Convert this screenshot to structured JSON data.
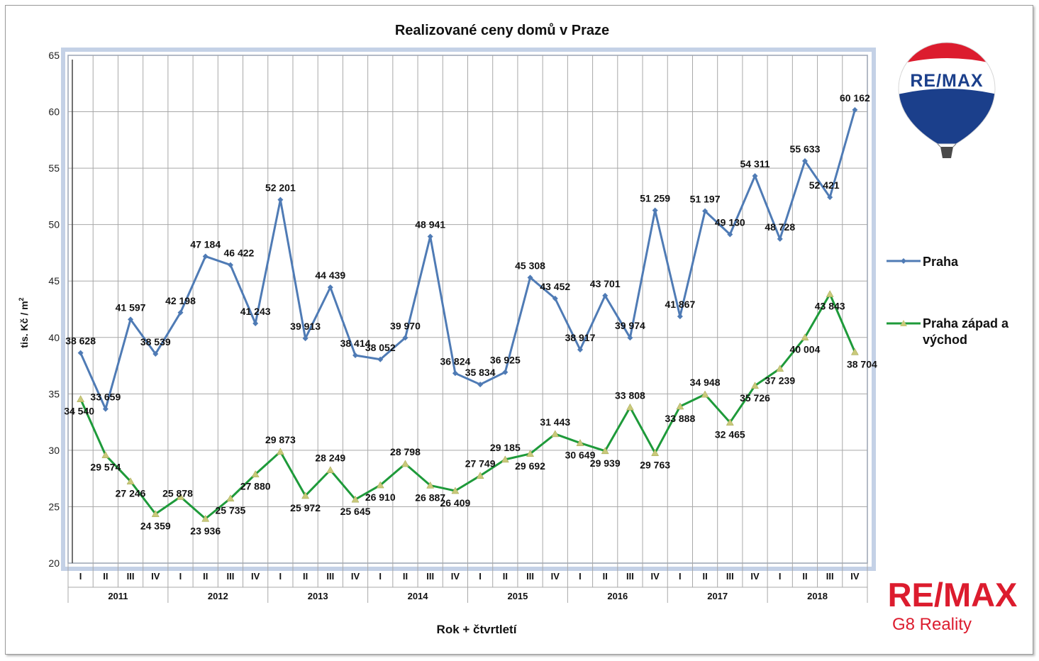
{
  "chart_data": {
    "type": "line",
    "title": "Realizované ceny domů v Praze",
    "xlabel": "Rok + čtvrtletí",
    "ylabel": "tis. Kč / m²",
    "ylim": [
      20,
      65
    ],
    "yticks": [
      "20",
      "25",
      "30",
      "35",
      "40",
      "45",
      "50",
      "55",
      "60",
      "65"
    ],
    "grid": true,
    "legend_position": "right",
    "quarters": [
      "I",
      "II",
      "III",
      "IV"
    ],
    "years": [
      "2011",
      "2012",
      "2013",
      "2014",
      "2015",
      "2016",
      "2017",
      "2018"
    ],
    "series": [
      {
        "name": "Praha",
        "color": "#4f7bb5",
        "marker": "diamond",
        "values": [
          38628,
          33659,
          41597,
          38539,
          42198,
          47184,
          46422,
          41243,
          52201,
          39913,
          44439,
          38414,
          38052,
          39970,
          48941,
          36824,
          35834,
          36925,
          45308,
          43452,
          38917,
          43701,
          39974,
          51259,
          41867,
          51197,
          49130,
          54311,
          48728,
          55633,
          52421,
          60162
        ],
        "labels": [
          "38 628",
          "33 659",
          "41 597",
          "38 539",
          "42 198",
          "47 184",
          "46 422",
          "41 243",
          "52 201",
          "39 913",
          "44 439",
          "38 414",
          "38 052",
          "39 970",
          "48 941",
          "36 824",
          "35 834",
          "36 925",
          "45 308",
          "43 452",
          "38 917",
          "43 701",
          "39 974",
          "51 259",
          "41 867",
          "51 197",
          "49 130",
          "54 311",
          "48 728",
          "55 633",
          "52 421",
          "60 162"
        ]
      },
      {
        "name": "Praha západ a východ",
        "color": "#1e9a3a",
        "marker": "triangle",
        "values": [
          34540,
          29574,
          27246,
          24359,
          25878,
          23936,
          25735,
          27880,
          29873,
          25972,
          28249,
          25645,
          26910,
          28798,
          26887,
          26409,
          27749,
          29185,
          29692,
          31443,
          30649,
          29939,
          33808,
          29763,
          33888,
          34948,
          32465,
          35726,
          37239,
          40004,
          43843,
          38704
        ],
        "labels": [
          "34 540",
          "29 574",
          "27 246",
          "24 359",
          "25 878",
          "23 936",
          "25 735",
          "27 880",
          "29 873",
          "25 972",
          "28 249",
          "25 645",
          "26 910",
          "28 798",
          "26 887",
          "26 409",
          "27 749",
          "29 185",
          "29 692",
          "31 443",
          "30 649",
          "29 939",
          "33 808",
          "29 763",
          "33 888",
          "34 948",
          "32 465",
          "35 726",
          "37 239",
          "40 004",
          "43 843",
          "38 704"
        ]
      }
    ]
  },
  "legend": {
    "praha": "Praha",
    "zapad_line1": "Praha západ a",
    "zapad_line2": "východ"
  },
  "ylabel_parts": {
    "main": "tis. Kč / m",
    "sup": "2"
  },
  "logo": {
    "balloon_text": "RE/MAX",
    "brand": "RE/MAX",
    "sub": "G8 Reality",
    "red": "#dc1c2e",
    "blue": "#1b3f8b"
  }
}
